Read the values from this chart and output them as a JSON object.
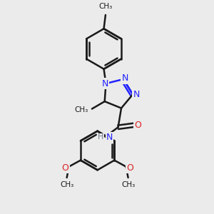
{
  "background_color": "#ebebeb",
  "bond_color": "#1a1a1a",
  "nitrogen_color": "#2222ff",
  "oxygen_color": "#dd2222",
  "hydrogen_color": "#708090",
  "bond_width": 1.8,
  "figsize": [
    3.0,
    3.0
  ],
  "dpi": 100,
  "xlim": [
    0,
    10
  ],
  "ylim": [
    0,
    10
  ],
  "font_size_atom": 9,
  "font_size_methyl": 7.5
}
